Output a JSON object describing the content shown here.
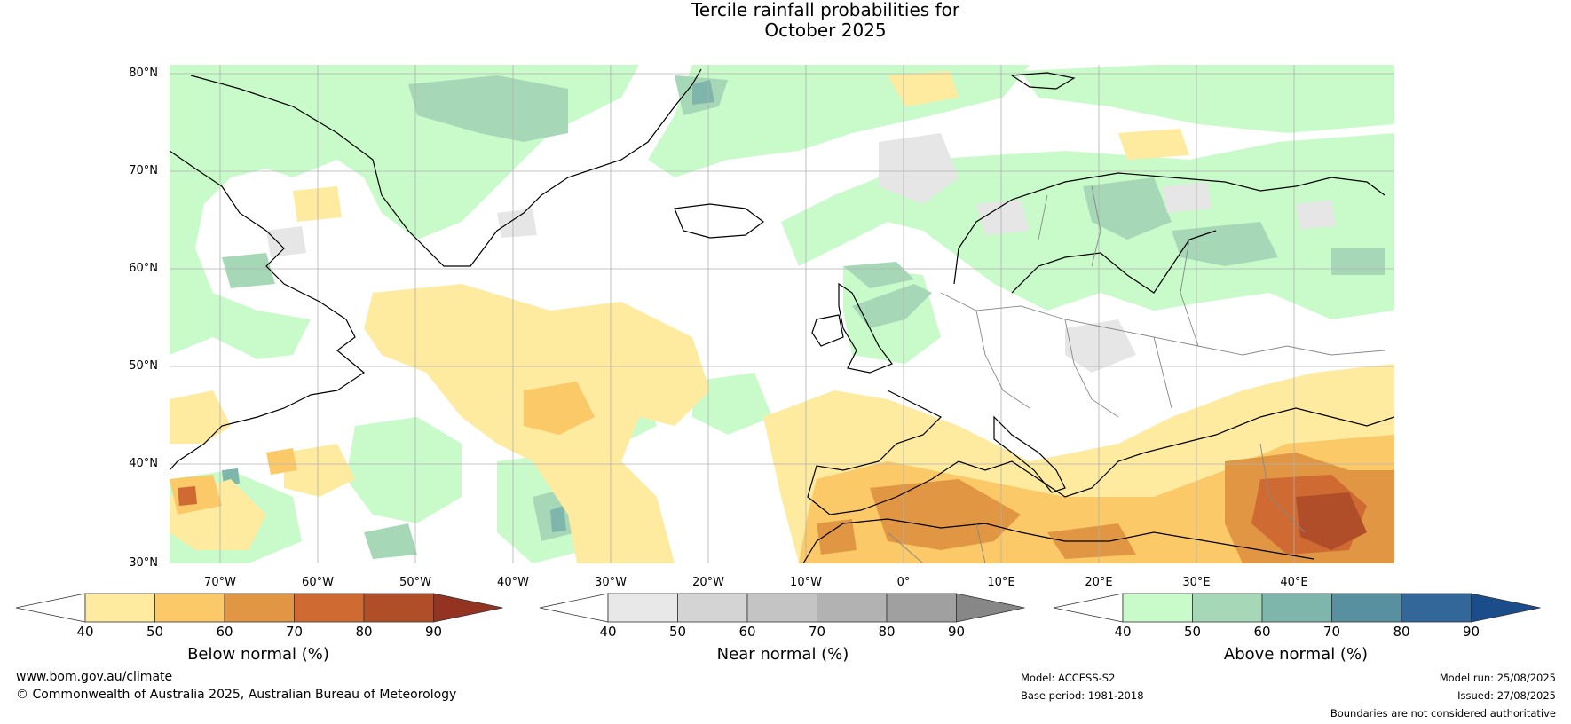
{
  "title": {
    "line1": "Tercile rainfall probabilities for",
    "line2": "October 2025"
  },
  "map": {
    "latitude_labels": [
      "80°N",
      "70°N",
      "60°N",
      "50°N",
      "40°N",
      "30°N"
    ],
    "longitude_labels": [
      "70°W",
      "60°W",
      "50°W",
      "40°W",
      "30°W",
      "20°W",
      "10°W",
      "0°",
      "10°E",
      "20°E",
      "30°E",
      "40°E"
    ]
  },
  "colorbars": [
    {
      "label": "Below normal (%)",
      "ticks": [
        "40",
        "50",
        "60",
        "70",
        "80",
        "90"
      ],
      "colors": [
        "#ffffff",
        "#feeba0",
        "#fcc968",
        "#e09642",
        "#cf6a33",
        "#b04e2a",
        "#953323"
      ]
    },
    {
      "label": "Near normal (%)",
      "ticks": [
        "40",
        "50",
        "60",
        "70",
        "80",
        "90"
      ],
      "colors": [
        "#ffffff",
        "#e8e8e8",
        "#d4d4d4",
        "#c4c4c4",
        "#b2b2b2",
        "#a0a0a0",
        "#878787"
      ]
    },
    {
      "label": "Above normal (%)",
      "ticks": [
        "40",
        "50",
        "60",
        "70",
        "80",
        "90"
      ],
      "colors": [
        "#ffffff",
        "#c9fbca",
        "#a6d8b8",
        "#7fb6ab",
        "#5990a0",
        "#336799",
        "#1a4d8a"
      ]
    }
  ],
  "footer": {
    "website": "www.bom.gov.au/climate",
    "copyright": "© Commonwealth of Australia 2025, Australian Bureau of Meteorology",
    "model": "Model: ACCESS-S2",
    "base_period": "Base period: 1981-2018",
    "model_run": "Model run: 25/08/2025",
    "issued": "Issued: 27/08/2025",
    "disclaimer": "Boundaries are not considered authoritative"
  }
}
